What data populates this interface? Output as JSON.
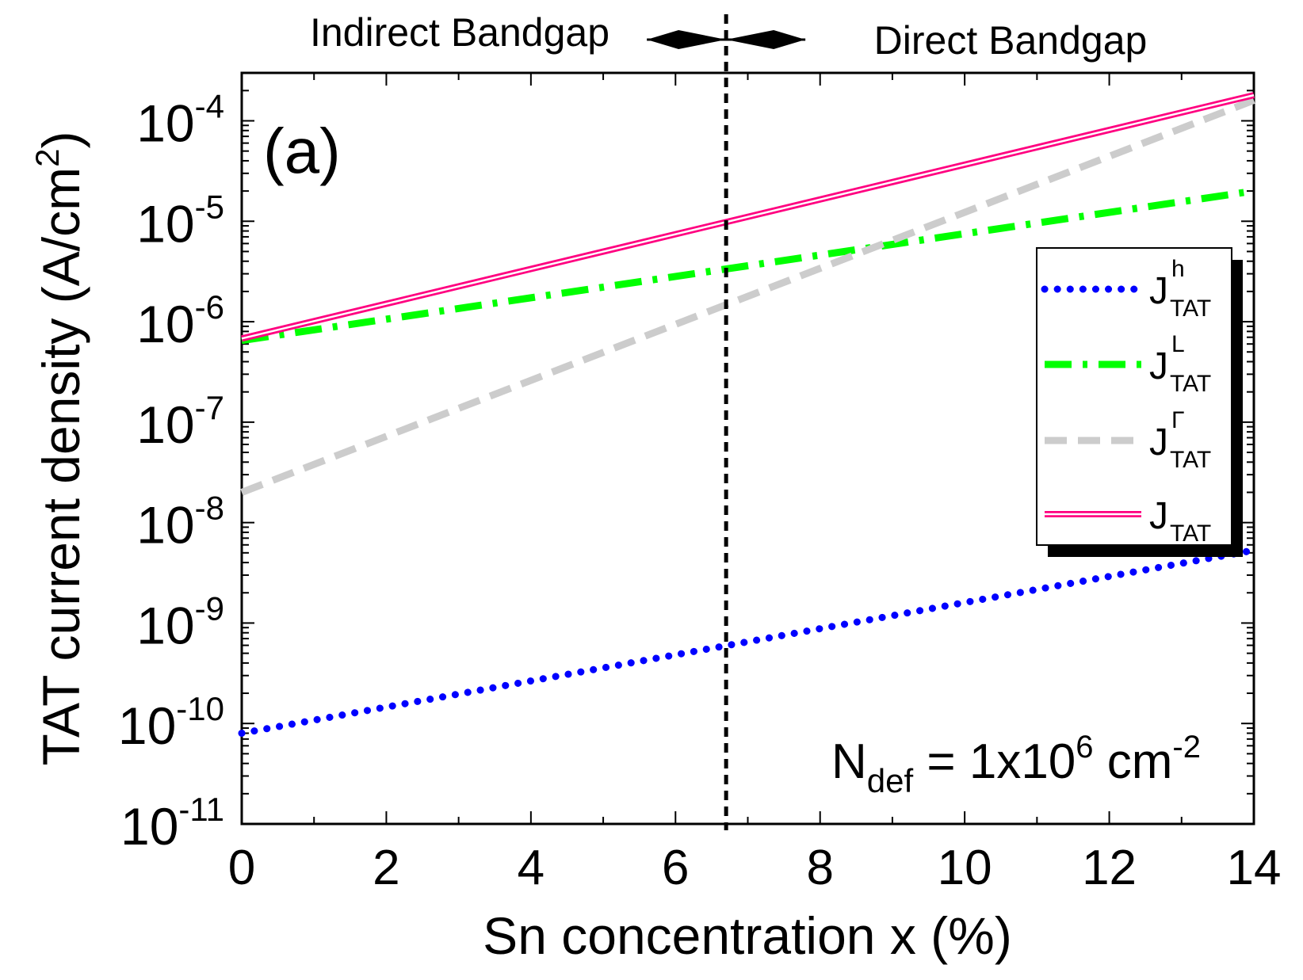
{
  "chart_data": {
    "type": "line",
    "panel_label": "(a)",
    "xlabel": "Sn concentration x (%)",
    "ylabel_main": "TAT current density (A/cm",
    "ylabel_sup": "2",
    "ylabel_close": ")",
    "xlim": [
      0,
      14
    ],
    "ylim": [
      1e-11,
      0.0003
    ],
    "yscale": "log",
    "x_ticks": [
      {
        "value": 0,
        "label": "0"
      },
      {
        "value": 2,
        "label": "2"
      },
      {
        "value": 4,
        "label": "4"
      },
      {
        "value": 6,
        "label": "6"
      },
      {
        "value": 8,
        "label": "8"
      },
      {
        "value": 10,
        "label": "10"
      },
      {
        "value": 12,
        "label": "12"
      },
      {
        "value": 14,
        "label": "14"
      }
    ],
    "y_ticks": [
      {
        "exp": -11,
        "base": "10",
        "sup": "-11"
      },
      {
        "exp": -10,
        "base": "10",
        "sup": "-10"
      },
      {
        "exp": -9,
        "base": "10",
        "sup": "-9"
      },
      {
        "exp": -8,
        "base": "10",
        "sup": "-8"
      },
      {
        "exp": -7,
        "base": "10",
        "sup": "-7"
      },
      {
        "exp": -6,
        "base": "10",
        "sup": "-6"
      },
      {
        "exp": -5,
        "base": "10",
        "sup": "-5"
      },
      {
        "exp": -4,
        "base": "10",
        "sup": "-4"
      }
    ],
    "transition_x": 6.7,
    "region_left_label": "Indirect Bandgap",
    "region_right_label": "Direct Bandgap",
    "annotation": {
      "main": "N",
      "sub": "def",
      "mid": " = 1x10",
      "sup": "6",
      "unit": " cm",
      "unit_sup": "-2"
    },
    "legend_position": "right",
    "series": [
      {
        "legend_main": "J",
        "legend_sup": "h",
        "legend_sub": "TAT",
        "color": "#0000ff",
        "style": "dotted",
        "x": [
          0,
          14
        ],
        "y": [
          8e-11,
          5.3e-09
        ]
      },
      {
        "legend_main": "J",
        "legend_sup": "L",
        "legend_sub": "TAT",
        "color": "#00ff00",
        "style": "dashdot",
        "x": [
          0,
          14
        ],
        "y": [
          6.5e-07,
          2e-05
        ]
      },
      {
        "legend_main": "J",
        "legend_sup": "Γ",
        "legend_sub": "TAT",
        "color": "#cccccc",
        "style": "dashed",
        "x": [
          0,
          14
        ],
        "y": [
          2e-08,
          0.00016
        ]
      },
      {
        "legend_main": "J",
        "legend_sup": "",
        "legend_sub": "TAT",
        "color": "#ff0080",
        "style": "double",
        "x": [
          0,
          14
        ],
        "y": [
          6.8e-07,
          0.00018
        ]
      }
    ]
  }
}
